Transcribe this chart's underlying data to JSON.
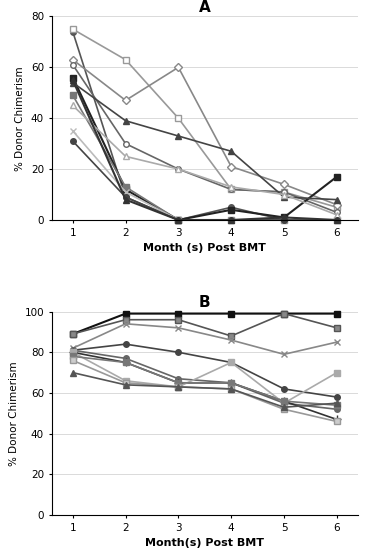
{
  "panel_A": {
    "title": "A",
    "xlabel": "Month (s) Post BMT",
    "ylabel": "% Donor Chimerism",
    "ylim": [
      0,
      80
    ],
    "yticks": [
      0,
      20,
      40,
      60,
      80
    ],
    "xlim": [
      0.6,
      6.4
    ],
    "xticks": [
      1,
      2,
      3,
      4,
      5,
      6
    ],
    "series": [
      {
        "x": [
          1,
          2,
          3,
          4,
          5,
          6
        ],
        "y": [
          74,
          9,
          0,
          5,
          0,
          0
        ],
        "color": "#555555",
        "marker": "o",
        "mfc": "#555555",
        "lw": 1.2,
        "ms": 4
      },
      {
        "x": [
          1,
          2,
          3,
          4,
          5,
          6
        ],
        "y": [
          75,
          63,
          40,
          12,
          11,
          5
        ],
        "color": "#999999",
        "marker": "s",
        "mfc": "white",
        "lw": 1.2,
        "ms": 4
      },
      {
        "x": [
          1,
          2,
          3,
          4,
          5,
          6
        ],
        "y": [
          63,
          47,
          60,
          21,
          14,
          6
        ],
        "color": "#888888",
        "marker": "D",
        "mfc": "white",
        "lw": 1.2,
        "ms": 4
      },
      {
        "x": [
          1,
          2,
          3,
          4,
          5,
          6
        ],
        "y": [
          61,
          30,
          20,
          12,
          11,
          3
        ],
        "color": "#666666",
        "marker": "o",
        "mfc": "white",
        "lw": 1.2,
        "ms": 4
      },
      {
        "x": [
          1,
          2,
          3,
          4,
          5,
          6
        ],
        "y": [
          56,
          12,
          0,
          4,
          1,
          17
        ],
        "color": "#222222",
        "marker": "s",
        "mfc": "#222222",
        "lw": 1.5,
        "ms": 4
      },
      {
        "x": [
          1,
          2,
          3,
          4,
          5,
          6
        ],
        "y": [
          54,
          39,
          33,
          27,
          9,
          8
        ],
        "color": "#444444",
        "marker": "^",
        "mfc": "#444444",
        "lw": 1.2,
        "ms": 4
      },
      {
        "x": [
          1,
          2,
          3,
          4,
          5,
          6
        ],
        "y": [
          49,
          13,
          0,
          0,
          0,
          0
        ],
        "color": "#777777",
        "marker": "s",
        "mfc": "#777777",
        "lw": 1.2,
        "ms": 4
      },
      {
        "x": [
          1,
          2,
          3,
          4,
          5,
          6
        ],
        "y": [
          45,
          25,
          20,
          13,
          10,
          2
        ],
        "color": "#aaaaaa",
        "marker": "^",
        "mfc": "white",
        "lw": 1.2,
        "ms": 4
      },
      {
        "x": [
          1,
          2,
          3,
          4,
          5,
          6
        ],
        "y": [
          35,
          11,
          0,
          0,
          0,
          0
        ],
        "color": "#bbbbbb",
        "marker": "x",
        "mfc": "#bbbbbb",
        "lw": 1.2,
        "ms": 4
      },
      {
        "x": [
          1,
          2,
          3,
          4,
          5,
          6
        ],
        "y": [
          31,
          9,
          0,
          0,
          0,
          0
        ],
        "color": "#444444",
        "marker": "o",
        "mfc": "#444444",
        "lw": 1.2,
        "ms": 4
      },
      {
        "x": [
          1,
          2,
          3,
          4,
          5,
          6
        ],
        "y": [
          55,
          8,
          0,
          0,
          1,
          0
        ],
        "color": "#333333",
        "marker": "^",
        "mfc": "#333333",
        "lw": 1.5,
        "ms": 4
      }
    ]
  },
  "panel_B": {
    "title": "B",
    "xlabel": "Month(s) Post BMT",
    "ylabel": "% Donor Chimerism",
    "ylim": [
      0,
      100
    ],
    "yticks": [
      0,
      20,
      40,
      60,
      80,
      100
    ],
    "xlim": [
      0.6,
      6.4
    ],
    "xticks": [
      1,
      2,
      3,
      4,
      5,
      6
    ],
    "series": [
      {
        "x": [
          1,
          2,
          3,
          4,
          5,
          6
        ],
        "y": [
          89,
          99,
          99,
          99,
          99,
          99
        ],
        "color": "#111111",
        "marker": "s",
        "mfc": "#111111",
        "lw": 1.5,
        "ms": 4
      },
      {
        "x": [
          1,
          2,
          3,
          4,
          5,
          6
        ],
        "y": [
          89,
          96,
          96,
          88,
          99,
          92
        ],
        "color": "#555555",
        "marker": "s",
        "mfc": "#888888",
        "lw": 1.2,
        "ms": 4
      },
      {
        "x": [
          1,
          2,
          3,
          4,
          5,
          6
        ],
        "y": [
          82,
          94,
          92,
          86,
          79,
          85
        ],
        "color": "#888888",
        "marker": "x",
        "mfc": "#888888",
        "lw": 1.2,
        "ms": 5
      },
      {
        "x": [
          1,
          2,
          3,
          4,
          5,
          6
        ],
        "y": [
          81,
          84,
          80,
          75,
          62,
          58
        ],
        "color": "#444444",
        "marker": "o",
        "mfc": "#444444",
        "lw": 1.2,
        "ms": 4
      },
      {
        "x": [
          1,
          2,
          3,
          4,
          5,
          6
        ],
        "y": [
          81,
          77,
          67,
          65,
          55,
          52
        ],
        "color": "#666666",
        "marker": "o",
        "mfc": "#666666",
        "lw": 1.2,
        "ms": 4
      },
      {
        "x": [
          1,
          2,
          3,
          4,
          5,
          6
        ],
        "y": [
          80,
          75,
          65,
          65,
          56,
          47
        ],
        "color": "#333333",
        "marker": "+",
        "mfc": "#333333",
        "lw": 1.2,
        "ms": 6
      },
      {
        "x": [
          1,
          2,
          3,
          4,
          5,
          6
        ],
        "y": [
          80,
          66,
          63,
          75,
          55,
          70
        ],
        "color": "#aaaaaa",
        "marker": "s",
        "mfc": "#aaaaaa",
        "lw": 1.2,
        "ms": 4
      },
      {
        "x": [
          1,
          2,
          3,
          4,
          5,
          6
        ],
        "y": [
          78,
          75,
          65,
          65,
          56,
          54
        ],
        "color": "#777777",
        "marker": "s",
        "mfc": "#777777",
        "lw": 1.2,
        "ms": 4
      },
      {
        "x": [
          1,
          2,
          3,
          4,
          5,
          6
        ],
        "y": [
          76,
          65,
          63,
          62,
          52,
          46
        ],
        "color": "#999999",
        "marker": "s",
        "mfc": "#cccccc",
        "lw": 1.2,
        "ms": 4
      },
      {
        "x": [
          1,
          2,
          3,
          4,
          5,
          6
        ],
        "y": [
          70,
          64,
          63,
          62,
          53,
          55
        ],
        "color": "#555555",
        "marker": "^",
        "mfc": "#555555",
        "lw": 1.2,
        "ms": 4
      }
    ]
  }
}
